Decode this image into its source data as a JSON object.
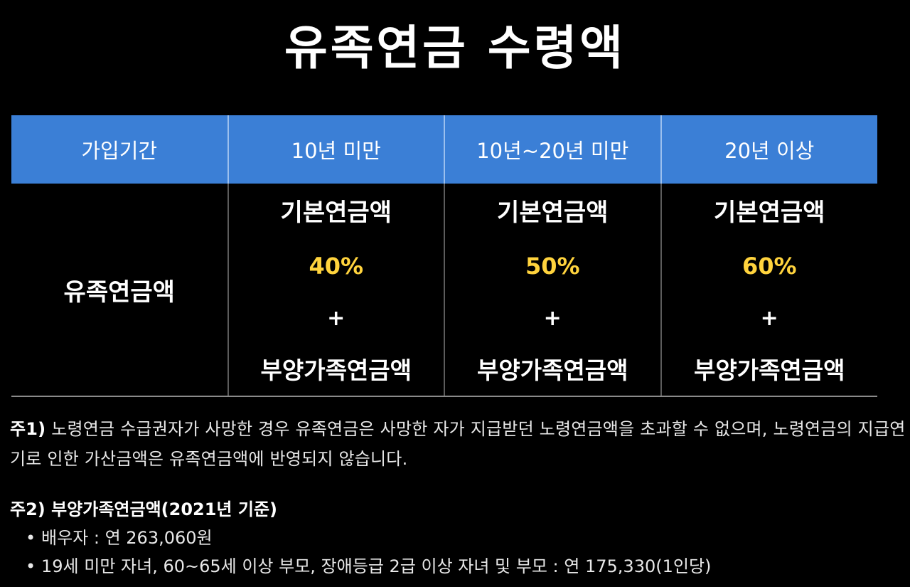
{
  "title": "유족연금 수령액",
  "table": {
    "header": [
      "가입기간",
      "10년 미만",
      "10년~20년 미만",
      "20년 이상"
    ],
    "row_label": "유족연금액",
    "columns": [
      {
        "base": "기본연금액",
        "percent": "40%",
        "plus": "+",
        "dependent": "부양가족연금액"
      },
      {
        "base": "기본연금액",
        "percent": "50%",
        "plus": "+",
        "dependent": "부양가족연금액"
      },
      {
        "base": "기본연금액",
        "percent": "60%",
        "plus": "+",
        "dependent": "부양가족연금액"
      }
    ]
  },
  "notes": {
    "note1_label": "주1)",
    "note1_text": "노령연금 수급권자가 사망한 경우 유족연금은 사망한 자가 지급받던 노령연금액을 초과할 수 없으며, 노령연금의 지급연기로 인한 가산금액은 유족연금액에 반영되지 않습니다.",
    "note2_title": "주2) 부양가족연금액(2021년 기준)",
    "bullet_symbol": "•",
    "bullets": [
      "배우자 : 연 263,060원",
      "19세 미만 자녀, 60~65세 이상 부모, 장애등급 2급 이상 자녀 및 부모 : 연 175,330(1인당)"
    ]
  },
  "colors": {
    "header_bg": "#3b7fd6",
    "percent": "#ffd33d",
    "background": "#000000"
  }
}
